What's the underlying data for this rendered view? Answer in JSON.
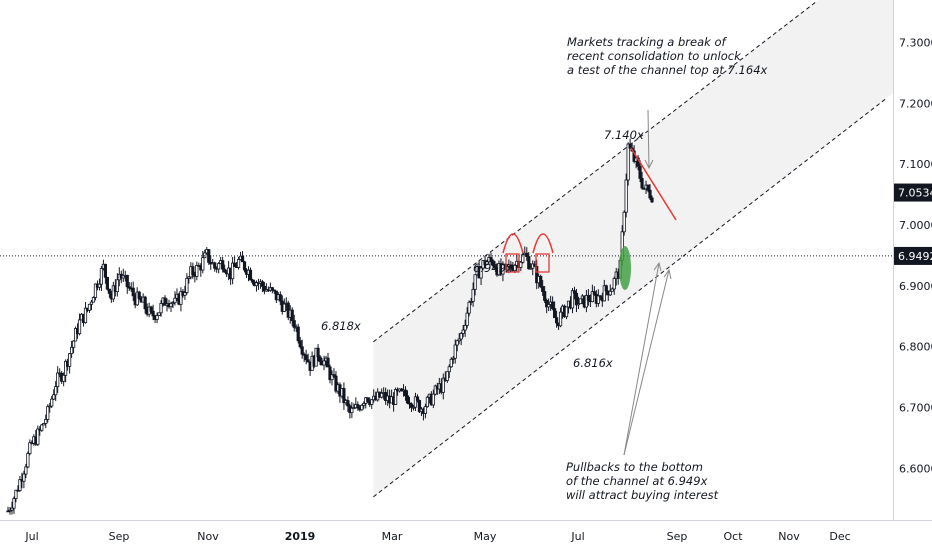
{
  "chart_data": {
    "type": "candlestick",
    "x_ticks": [
      "Jul",
      "Sep",
      "Nov",
      "2019",
      "Mar",
      "May",
      "Jul",
      "Sep",
      "Oct",
      "Nov",
      "Dec"
    ],
    "y_ticks": [
      "6.60000",
      "6.70000",
      "6.80000",
      "6.90000",
      "7.00000",
      "7.10000",
      "7.20000",
      "7.30000"
    ],
    "ylim": [
      6.515,
      7.37
    ],
    "last_price": {
      "label": "7.05340",
      "value": 7.0534
    },
    "level_line": {
      "label": "6.94922",
      "value": 6.9492
    },
    "price_path": [
      [
        0,
        6.53
      ],
      [
        2,
        6.56
      ],
      [
        4,
        6.6
      ],
      [
        6,
        6.64
      ],
      [
        8,
        6.66
      ],
      [
        10,
        6.69
      ],
      [
        12,
        6.74
      ],
      [
        14,
        6.76
      ],
      [
        16,
        6.8
      ],
      [
        18,
        6.84
      ],
      [
        20,
        6.86
      ],
      [
        22,
        6.9
      ],
      [
        24,
        6.93
      ],
      [
        26,
        6.88
      ],
      [
        28,
        6.92
      ],
      [
        30,
        6.9
      ],
      [
        32,
        6.88
      ],
      [
        34,
        6.87
      ],
      [
        36,
        6.85
      ],
      [
        38,
        6.86
      ],
      [
        40,
        6.88
      ],
      [
        42,
        6.87
      ],
      [
        44,
        6.89
      ],
      [
        46,
        6.92
      ],
      [
        48,
        6.93
      ],
      [
        50,
        6.95
      ],
      [
        52,
        6.93
      ],
      [
        54,
        6.94
      ],
      [
        56,
        6.92
      ],
      [
        58,
        6.94
      ],
      [
        60,
        6.93
      ],
      [
        62,
        6.91
      ],
      [
        64,
        6.9
      ],
      [
        66,
        6.89
      ],
      [
        68,
        6.88
      ],
      [
        70,
        6.86
      ],
      [
        72,
        6.84
      ],
      [
        74,
        6.8
      ],
      [
        76,
        6.77
      ],
      [
        78,
        6.79
      ],
      [
        80,
        6.77
      ],
      [
        82,
        6.74
      ],
      [
        84,
        6.72
      ],
      [
        86,
        6.69
      ],
      [
        88,
        6.7
      ],
      [
        90,
        6.72
      ],
      [
        92,
        6.71
      ],
      [
        94,
        6.72
      ],
      [
        96,
        6.71
      ],
      [
        98,
        6.72
      ],
      [
        100,
        6.72
      ],
      [
        102,
        6.71
      ],
      [
        104,
        6.7
      ],
      [
        106,
        6.71
      ],
      [
        108,
        6.73
      ],
      [
        110,
        6.74
      ],
      [
        112,
        6.79
      ],
      [
        114,
        6.82
      ],
      [
        116,
        6.87
      ],
      [
        118,
        6.92
      ],
      [
        120,
        6.94
      ],
      [
        122,
        6.94
      ],
      [
        124,
        6.92
      ],
      [
        126,
        6.93
      ],
      [
        128,
        6.94
      ],
      [
        130,
        6.95
      ],
      [
        132,
        6.93
      ],
      [
        134,
        6.9
      ],
      [
        136,
        6.87
      ],
      [
        138,
        6.84
      ],
      [
        140,
        6.86
      ],
      [
        142,
        6.88
      ],
      [
        144,
        6.87
      ],
      [
        146,
        6.88
      ],
      [
        148,
        6.88
      ],
      [
        150,
        6.89
      ],
      [
        152,
        6.9
      ],
      [
        154,
        6.93
      ],
      [
        156,
        7.13
      ],
      [
        158,
        7.1
      ],
      [
        160,
        7.06
      ],
      [
        162,
        7.05
      ]
    ],
    "price_path_x_range": [
      0,
      162
    ],
    "channel": {
      "upper_start": {
        "x_frac": 0.4006,
        "y": 6.808
      },
      "upper_end": {
        "x_frac": 0.8765,
        "y": 7.368
      },
      "lower_start": {
        "x_frac": 0.4006,
        "y": 6.553
      },
      "lower_end": {
        "x_frac": 0.9508,
        "y": 7.208
      }
    },
    "annotations": [
      {
        "text": "Markets tracking a break of",
        "key": "a1"
      },
      {
        "text": "recent consolidation to unlock",
        "key": "a2"
      },
      {
        "text": "a test of the channel top at 7.164x",
        "key": "a3"
      },
      {
        "text": "Pullbacks to the bottom",
        "key": "b1"
      },
      {
        "text": "of the channel at 6.949x",
        "key": "b2"
      },
      {
        "text": "will attract buying interest",
        "key": "b3"
      }
    ],
    "price_labels": [
      "6.818x",
      "6.949x",
      "7.140x",
      "6.816x"
    ]
  }
}
